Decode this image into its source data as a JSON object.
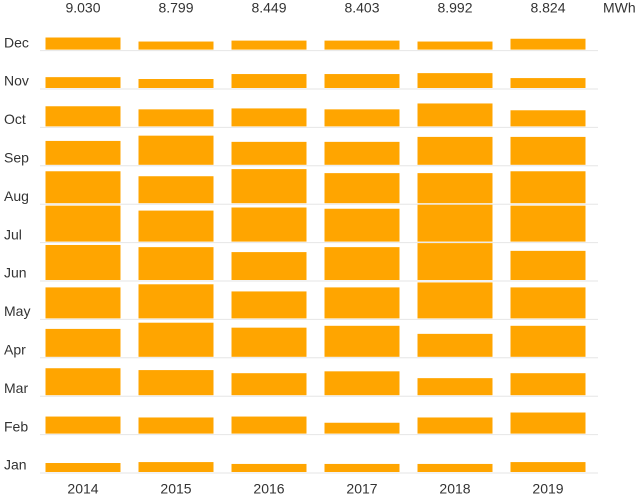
{
  "chart_data": {
    "type": "bar",
    "months": [
      "Jan",
      "Feb",
      "Mar",
      "Apr",
      "May",
      "Jun",
      "Jul",
      "Aug",
      "Sep",
      "Oct",
      "Nov",
      "Dec"
    ],
    "totals": {
      "values": [
        9.03,
        8.799,
        8.449,
        8.403,
        8.992,
        8.824
      ],
      "value_labels": [
        "9.030",
        "8.799",
        "8.449",
        "8.403",
        "8.992",
        "8.824"
      ],
      "unit": "MWh"
    },
    "color": "#ffa500",
    "series": [
      {
        "name": "2014",
        "values": [
          0.29,
          0.55,
          0.87,
          0.9,
          1.0,
          1.13,
          1.16,
          1.03,
          0.77,
          0.65,
          0.35,
          0.39
        ]
      },
      {
        "name": "2015",
        "values": [
          0.32,
          0.52,
          0.81,
          1.1,
          1.1,
          1.06,
          1.0,
          0.87,
          0.94,
          0.55,
          0.29,
          0.26
        ]
      },
      {
        "name": "2016",
        "values": [
          0.26,
          0.55,
          0.71,
          0.94,
          0.87,
          0.9,
          1.1,
          1.1,
          0.74,
          0.58,
          0.45,
          0.29
        ]
      },
      {
        "name": "2017",
        "values": [
          0.26,
          0.35,
          0.77,
          1.0,
          1.0,
          1.06,
          1.06,
          0.97,
          0.74,
          0.55,
          0.45,
          0.29
        ]
      },
      {
        "name": "2018",
        "values": [
          0.26,
          0.52,
          0.55,
          0.74,
          1.16,
          1.19,
          1.19,
          0.97,
          0.9,
          0.74,
          0.48,
          0.26
        ]
      },
      {
        "name": "2019",
        "values": [
          0.32,
          0.68,
          0.71,
          1.0,
          1.0,
          0.94,
          1.16,
          1.03,
          0.9,
          0.52,
          0.32,
          0.35
        ]
      }
    ]
  }
}
